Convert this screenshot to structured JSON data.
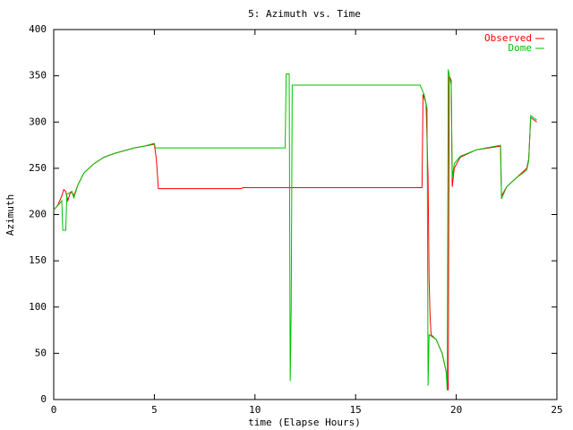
{
  "chart_data": {
    "type": "line",
    "title": "5: Azimuth vs. Time",
    "x_label": "time (Elapse Hours)",
    "y_label": "Azimuth",
    "xlim": [
      0,
      25
    ],
    "xticks": [
      0,
      5,
      10,
      15,
      20,
      25
    ],
    "ylim": [
      0,
      400
    ],
    "yticks": [
      0,
      50,
      100,
      150,
      200,
      250,
      300,
      350,
      400
    ],
    "legend": "upper right",
    "series": [
      {
        "name": "Observed",
        "color": "#ff0000",
        "x": [
          0,
          0.2,
          0.4,
          0.5,
          0.6,
          0.7,
          0.8,
          0.9,
          1.0,
          1.2,
          1.5,
          2,
          2.5,
          3,
          3.5,
          4,
          4.5,
          5,
          5.1,
          5.2,
          9.3,
          9.4,
          18.3,
          18.35,
          18.5,
          18.6,
          18.65,
          18.7,
          18.75,
          19,
          19.3,
          19.5,
          19.6,
          19.65,
          19.75,
          19.8,
          19.9,
          20.2,
          21,
          22.2,
          22.25,
          22.5,
          23,
          23.5,
          23.6,
          23.7,
          24
        ],
        "values": [
          205,
          210,
          220,
          227,
          225,
          215,
          222,
          225,
          220,
          232,
          245,
          255,
          262,
          266,
          269,
          272,
          274,
          276,
          260,
          228,
          228,
          229,
          229,
          330,
          320,
          240,
          130,
          90,
          70,
          65,
          50,
          30,
          10,
          350,
          345,
          230,
          250,
          262,
          270,
          274,
          220,
          230,
          240,
          250,
          260,
          305,
          300
        ]
      },
      {
        "name": "Dome",
        "color": "#00c000",
        "x": [
          0,
          0.3,
          0.4,
          0.45,
          0.6,
          0.65,
          0.9,
          1.0,
          1.2,
          1.5,
          2,
          2.5,
          3,
          3.5,
          4,
          4.5,
          5,
          5.05,
          11.5,
          11.55,
          11.7,
          11.75,
          11.8,
          11.85,
          18.2,
          18.4,
          18.55,
          18.6,
          18.65,
          19,
          19.3,
          19.5,
          19.55,
          19.6,
          19.75,
          19.8,
          19.9,
          20.2,
          21,
          22.2,
          22.25,
          22.5,
          23,
          23.5,
          23.6,
          23.7,
          24
        ],
        "values": [
          205,
          212,
          215,
          183,
          183,
          222,
          225,
          218,
          232,
          245,
          255,
          262,
          266,
          269,
          272,
          274,
          277,
          272,
          272,
          352,
          352,
          20,
          100,
          340,
          340,
          330,
          315,
          15,
          70,
          65,
          50,
          30,
          10,
          357,
          340,
          240,
          255,
          263,
          270,
          275,
          217,
          230,
          240,
          248,
          258,
          307,
          302
        ]
      }
    ]
  }
}
